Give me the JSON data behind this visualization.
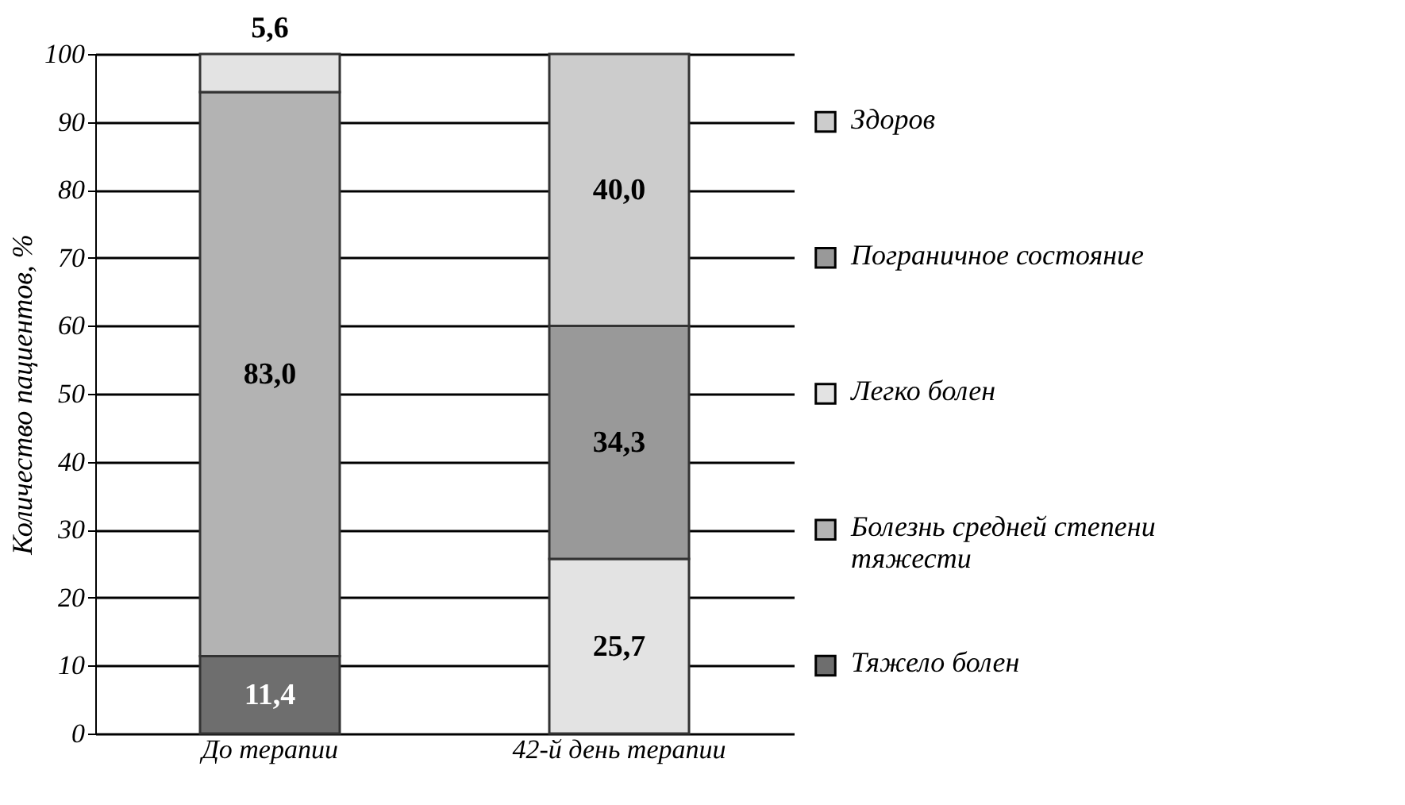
{
  "chart_data": {
    "type": "bar",
    "stacked": true,
    "ylabel": "Количество пациентов, %",
    "categories": [
      "До терапии",
      "42-й день терапии"
    ],
    "series": [
      {
        "name": "Тяжело болен",
        "color": "#6e6e6e",
        "values": [
          11.4,
          null
        ],
        "value_labels": [
          "11,4",
          null
        ]
      },
      {
        "name": "Болезнь средней степени тяжести",
        "color": "#b3b3b3",
        "values": [
          83.0,
          null
        ],
        "value_labels": [
          "83,0",
          null
        ]
      },
      {
        "name": "Легко болен",
        "color": "#e3e3e3",
        "values": [
          5.6,
          25.7
        ],
        "value_labels": [
          "5,6",
          "25,7"
        ]
      },
      {
        "name": "Пограничное состояние",
        "color": "#999999",
        "values": [
          null,
          34.3
        ],
        "value_labels": [
          null,
          "34,3"
        ]
      },
      {
        "name": "Здоров",
        "color": "#cccccc",
        "values": [
          null,
          40.0
        ],
        "value_labels": [
          null,
          "40,0"
        ]
      }
    ],
    "ylim": [
      0,
      100
    ],
    "yticks": [
      0,
      10,
      20,
      30,
      40,
      50,
      60,
      70,
      80,
      90,
      100
    ],
    "grid": "y",
    "legend": "right"
  }
}
